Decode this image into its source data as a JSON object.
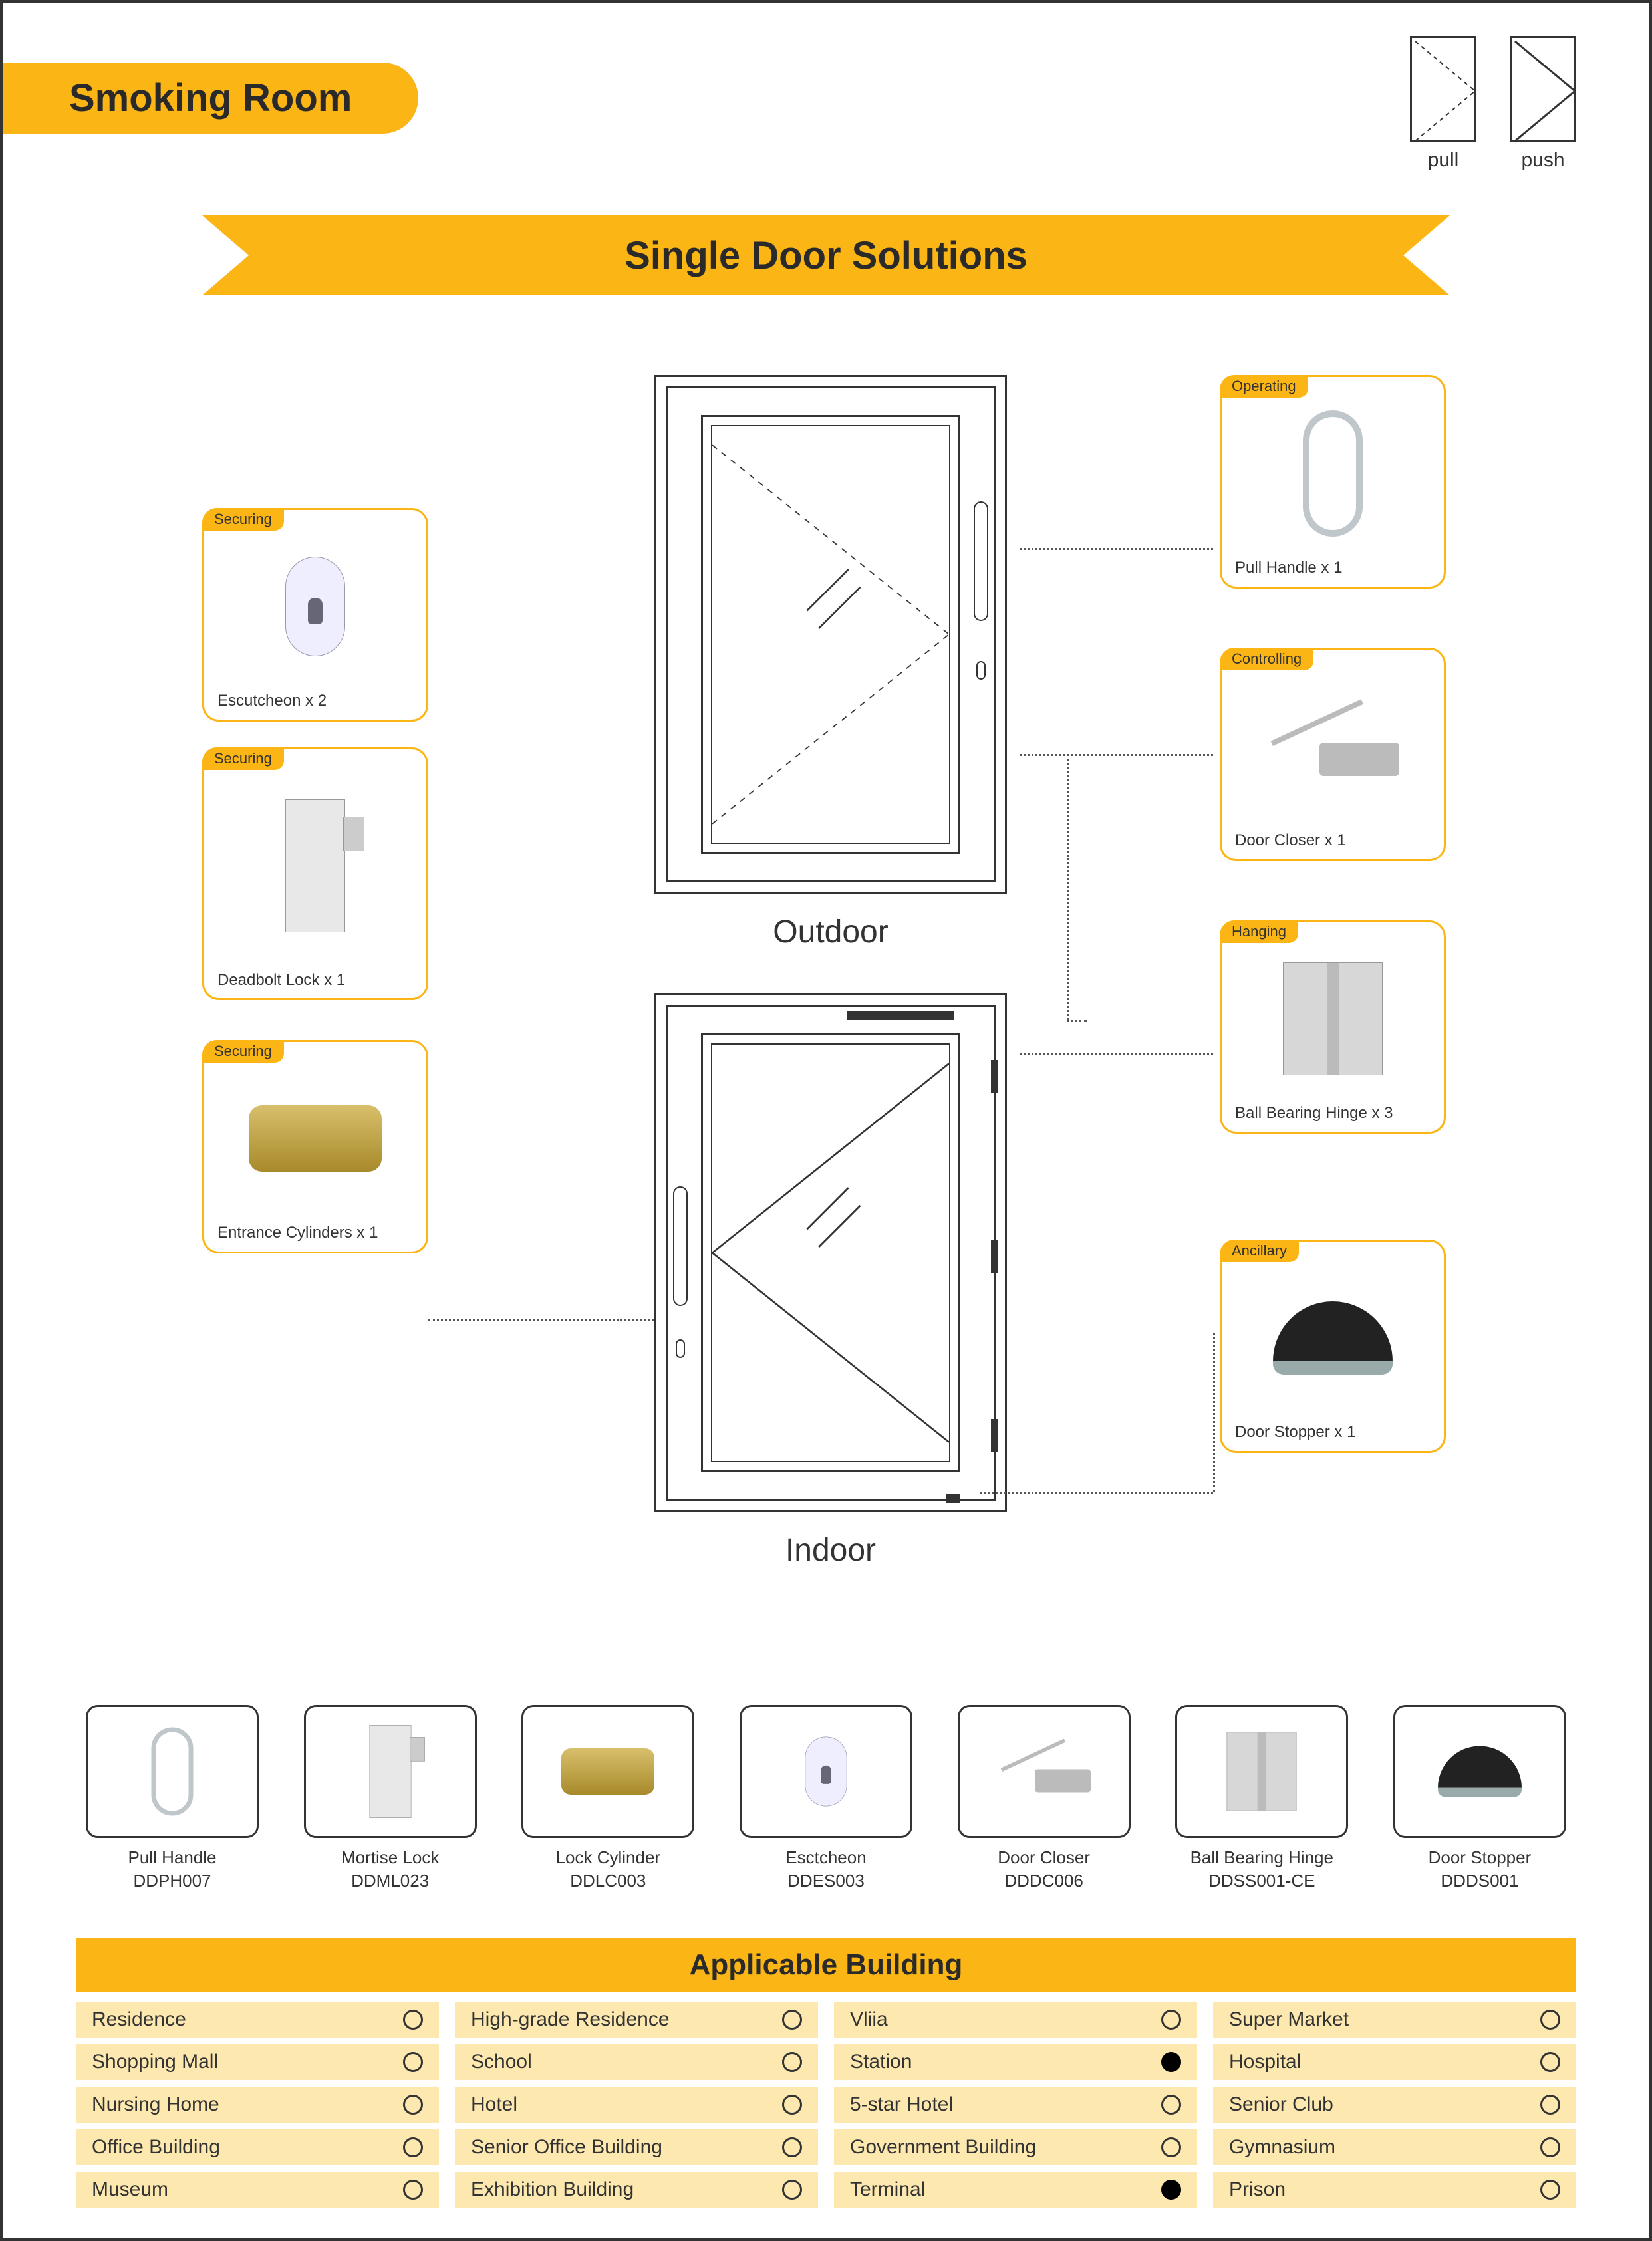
{
  "colors": {
    "accent": "#fbb615",
    "accent_light": "#fde8b0",
    "text": "#333333",
    "border": "#333333",
    "background": "#ffffff"
  },
  "page_title": "Smoking Room",
  "door_legend": {
    "pull_label": "pull",
    "push_label": "push"
  },
  "ribbon_title": "Single Door Solutions",
  "diagrams": {
    "outdoor_label": "Outdoor",
    "indoor_label": "Indoor"
  },
  "components": {
    "escutcheon": {
      "tag": "Securing",
      "caption": "Escutcheon x 2"
    },
    "deadbolt": {
      "tag": "Securing",
      "caption": "Deadbolt Lock x 1"
    },
    "cylinder": {
      "tag": "Securing",
      "caption": "Entrance Cylinders x 1"
    },
    "pullhandle": {
      "tag": "Operating",
      "caption": "Pull Handle x 1"
    },
    "doorcloser": {
      "tag": "Controlling",
      "caption": "Door Closer x 1"
    },
    "hinge": {
      "tag": "Hanging",
      "caption": "Ball Bearing Hinge x 3"
    },
    "stopper": {
      "tag": "Ancillary",
      "caption": "Door Stopper x 1"
    }
  },
  "products": [
    {
      "name": "Pull Handle",
      "sku": "DDPH007",
      "icon": "pullhandle"
    },
    {
      "name": "Mortise Lock",
      "sku": "DDML023",
      "icon": "deadbolt"
    },
    {
      "name": "Lock Cylinder",
      "sku": "DDLC003",
      "icon": "cylinder"
    },
    {
      "name": "Esctcheon",
      "sku": "DDES003",
      "icon": "escutcheon"
    },
    {
      "name": "Door Closer",
      "sku": "DDDC006",
      "icon": "doorcloser"
    },
    {
      "name": "Ball Bearing Hinge",
      "sku": "DDSS001-CE",
      "icon": "hinge"
    },
    {
      "name": "Door Stopper",
      "sku": "DDDS001",
      "icon": "stopper"
    }
  ],
  "applicable": {
    "header": "Applicable Building",
    "columns": 4,
    "items": [
      {
        "label": "Residence",
        "selected": false
      },
      {
        "label": "High-grade Residence",
        "selected": false
      },
      {
        "label": "Vliia",
        "selected": false
      },
      {
        "label": "Super Market",
        "selected": false
      },
      {
        "label": "Shopping Mall",
        "selected": false
      },
      {
        "label": "School",
        "selected": false
      },
      {
        "label": "Station",
        "selected": true
      },
      {
        "label": "Hospital",
        "selected": false
      },
      {
        "label": "Nursing Home",
        "selected": false
      },
      {
        "label": "Hotel",
        "selected": false
      },
      {
        "label": "5-star Hotel",
        "selected": false
      },
      {
        "label": "Senior Club",
        "selected": false
      },
      {
        "label": "Office Building",
        "selected": false
      },
      {
        "label": "Senior Office Building",
        "selected": false
      },
      {
        "label": "Government Building",
        "selected": false
      },
      {
        "label": "Gymnasium",
        "selected": false
      },
      {
        "label": "Museum",
        "selected": false
      },
      {
        "label": "Exhibition Building",
        "selected": false
      },
      {
        "label": "Terminal",
        "selected": true
      },
      {
        "label": "Prison",
        "selected": false
      }
    ]
  }
}
